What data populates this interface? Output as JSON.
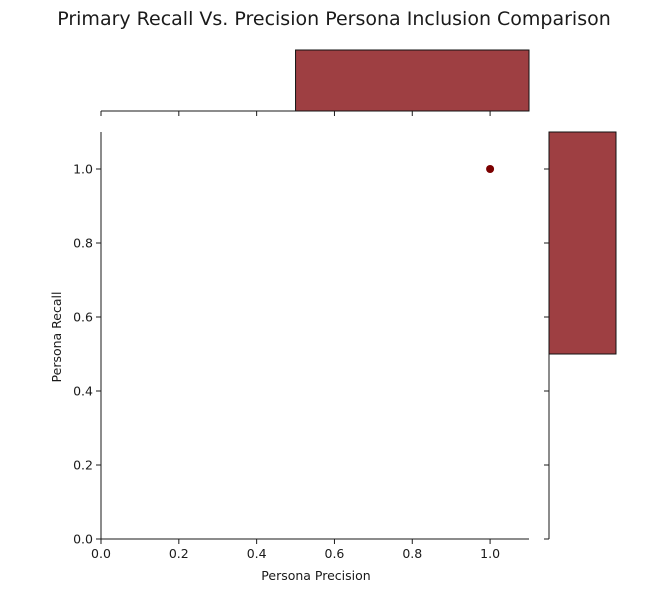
{
  "chart_data": {
    "type": "scatter",
    "title": "Primary Recall Vs. Precision Persona Inclusion Comparison",
    "xlabel": "Persona Precision",
    "ylabel": "Persona Recall",
    "xlim": [
      0.0,
      1.1
    ],
    "ylim": [
      0.0,
      1.1
    ],
    "xticks": [
      "0.0",
      "0.2",
      "0.4",
      "0.6",
      "0.8",
      "1.0"
    ],
    "yticks": [
      "0.0",
      "0.2",
      "0.4",
      "0.6",
      "0.8",
      "1.0"
    ],
    "points": [
      {
        "x": 1.0,
        "y": 1.0
      }
    ],
    "marginal_x_hist": {
      "bins": [
        [
          0.5,
          1.1
        ]
      ],
      "counts": [
        1
      ]
    },
    "marginal_y_hist": {
      "bins": [
        [
          0.5,
          1.1
        ]
      ],
      "counts": [
        1
      ]
    },
    "grid": false,
    "colors": {
      "point": "#7b0000",
      "hist_fill": "#9e3f42",
      "hist_edge": "#111111"
    }
  }
}
